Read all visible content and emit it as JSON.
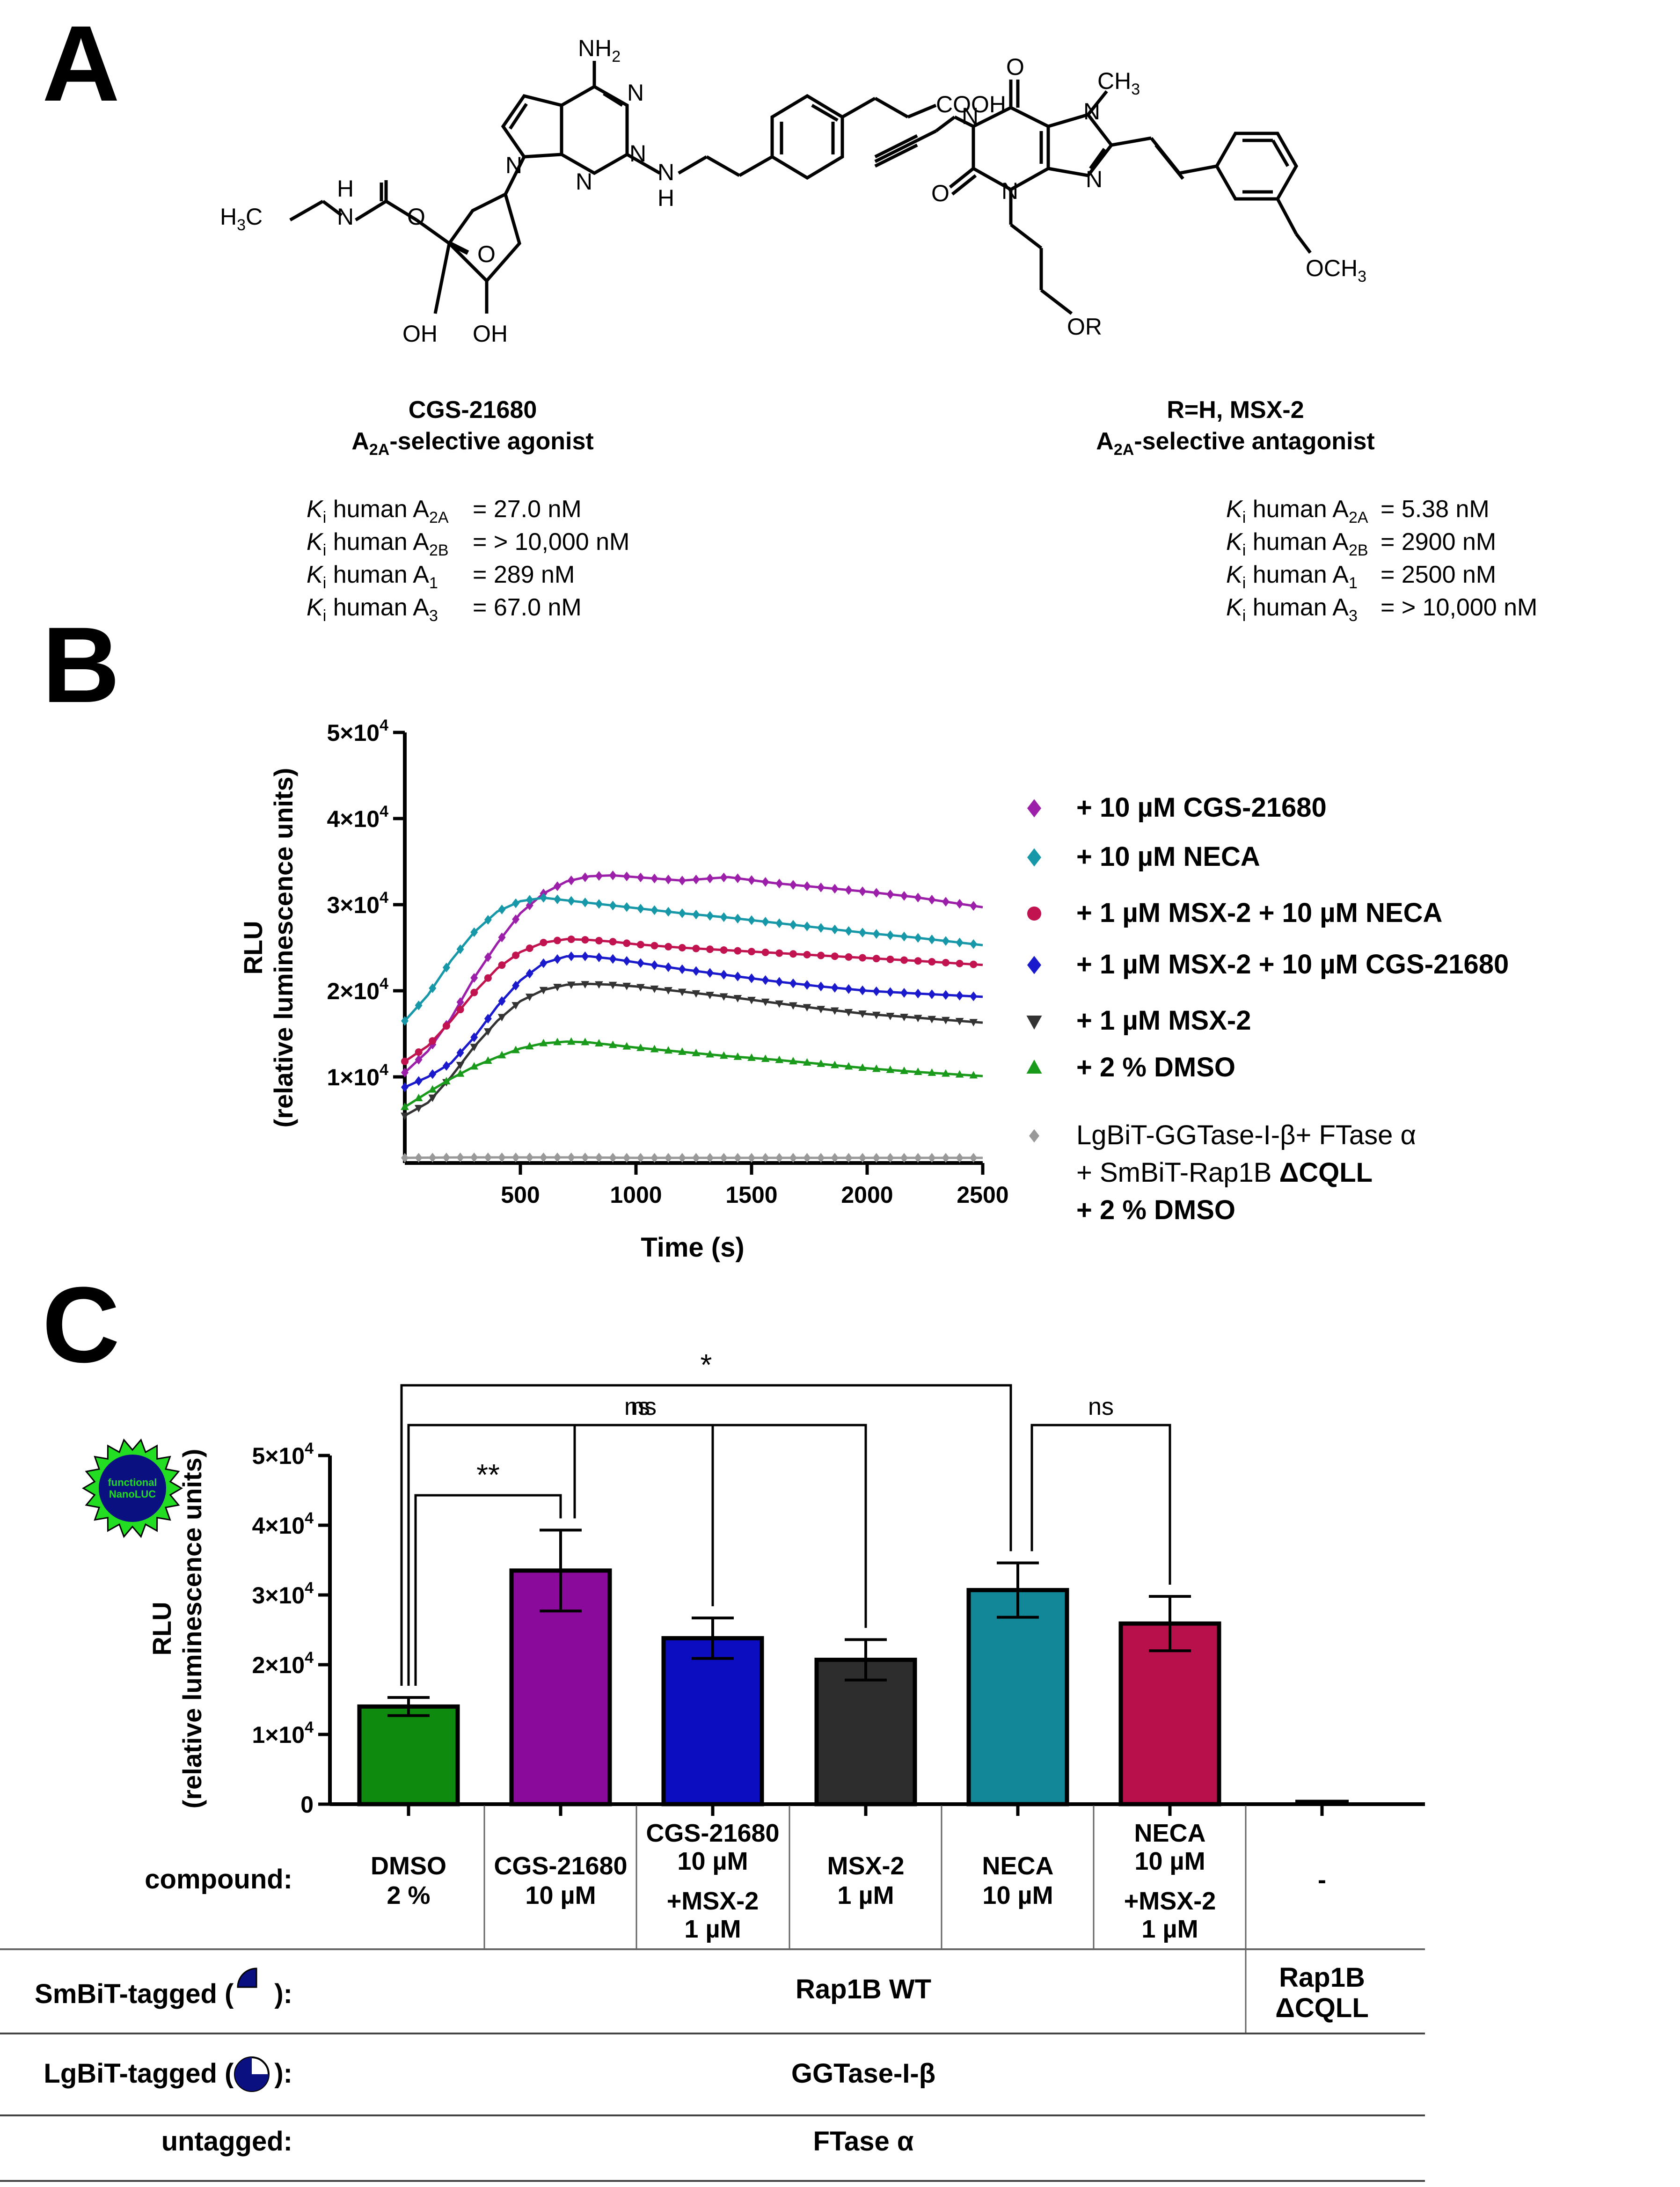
{
  "panels": {
    "a": "A",
    "b": "B",
    "c": "C"
  },
  "panel_a": {
    "cgs": {
      "atoms": {
        "nh2": "NH",
        "nh2_sub": "2",
        "n1": "N",
        "n2": "N",
        "n3": "N",
        "n4": "N",
        "nh": "N",
        "nh_h": "H",
        "cooh": "COOH",
        "h3c": "H",
        "h3c_sub": "3",
        "h3c_c": "C",
        "amide_h": "H",
        "amide_n": "N",
        "o_carbonyl": "O",
        "o_ring": "O",
        "oh1": "OH",
        "oh2": "OH"
      },
      "name": "CGS-21680",
      "role_prefix": "A",
      "role_sub": "2A",
      "role_suffix": "-selective agonist",
      "ki": [
        {
          "k": "K",
          "ksub": "i",
          "text": " human A",
          "sub": "2A",
          "value": "= 27.0 nM"
        },
        {
          "k": "K",
          "ksub": "i",
          "text": " human A",
          "sub": "2B",
          "value": "= > 10,000 nM"
        },
        {
          "k": "K",
          "ksub": "i",
          "text": " human A",
          "sub": "1",
          "value": "= 289 nM"
        },
        {
          "k": "K",
          "ksub": "i",
          "text": " human A",
          "sub": "3",
          "value": "= 67.0 nM"
        }
      ]
    },
    "msx": {
      "atoms": {
        "o_top": "O",
        "ch3": "CH",
        "ch3_sub": "3",
        "n1": "N",
        "n7": "N",
        "n9": "N",
        "n3": "N",
        "o_bottom": "O",
        "och3": "OCH",
        "och3_sub": "3",
        "or": "OR"
      },
      "name": "R=H, MSX-2",
      "role_prefix": "A",
      "role_sub": "2A",
      "role_suffix": "-selective antagonist",
      "ki": [
        {
          "k": "K",
          "ksub": "i",
          "text": " human A",
          "sub": "2A",
          "value": "= 5.38 nM"
        },
        {
          "k": "K",
          "ksub": "i",
          "text": " human A",
          "sub": "2B",
          "value": "= 2900 nM"
        },
        {
          "k": "K",
          "ksub": "i",
          "text": " human A",
          "sub": "1",
          "value": "= 2500 nM"
        },
        {
          "k": "K",
          "ksub": "i",
          "text": " human A",
          "sub": "3",
          "value": "= > 10,000 nM"
        }
      ]
    }
  },
  "chart_data": [
    {
      "type": "line",
      "panel": "B",
      "ylabel": "RLU",
      "ylabel2": "(relative luminescence units)",
      "xlabel": "Time (s)",
      "xlim": [
        0,
        2500
      ],
      "ylim": [
        0,
        50000
      ],
      "x_ticks": [
        500,
        1000,
        1500,
        2000,
        2500
      ],
      "y_ticks": [
        {
          "value": 10000,
          "m": "1",
          "e": "4"
        },
        {
          "value": 20000,
          "m": "2",
          "e": "4"
        },
        {
          "value": 30000,
          "m": "3",
          "e": "4"
        },
        {
          "value": 40000,
          "m": "4",
          "e": "4"
        },
        {
          "value": 50000,
          "m": "5",
          "e": "4"
        }
      ],
      "tick_mult": "×10",
      "legend_position": "right",
      "series": [
        {
          "name": "+ 10 µM CGS-21680",
          "color": "#9b1fa8",
          "marker": "diamond",
          "x": [
            0,
            100,
            200,
            300,
            400,
            500,
            600,
            700,
            800,
            900,
            1000,
            1200,
            1400,
            1600,
            1800,
            2000,
            2200,
            2500
          ],
          "y": [
            10500,
            13000,
            16800,
            21500,
            25500,
            29000,
            31300,
            32700,
            33300,
            33400,
            33200,
            32800,
            33200,
            32500,
            32000,
            31500,
            30900,
            29700
          ]
        },
        {
          "name": "+ 10 µM NECA",
          "color": "#1798a8",
          "marker": "diamond",
          "x": [
            0,
            100,
            200,
            300,
            400,
            500,
            600,
            700,
            800,
            900,
            1000,
            1200,
            1400,
            1600,
            1800,
            2000,
            2200,
            2500
          ],
          "y": [
            16500,
            19500,
            23500,
            26800,
            29200,
            30400,
            30800,
            30500,
            30200,
            29900,
            29600,
            29000,
            28500,
            27900,
            27300,
            26700,
            26200,
            25300
          ]
        },
        {
          "name": "+ 1 µM MSX-2 + 10 µM NECA",
          "color": "#c0134f",
          "marker": "circle",
          "x": [
            0,
            100,
            200,
            300,
            400,
            500,
            600,
            700,
            800,
            900,
            1000,
            1200,
            1400,
            1600,
            1800,
            2000,
            2200,
            2500
          ],
          "y": [
            11800,
            13600,
            16500,
            19800,
            22600,
            24500,
            25600,
            26000,
            25900,
            25700,
            25400,
            25000,
            24700,
            24400,
            24100,
            23800,
            23500,
            23000
          ]
        },
        {
          "name": "+ 1 µM MSX-2 + 10 µM CGS-21680",
          "color": "#1a1acc",
          "marker": "diamond",
          "x": [
            0,
            100,
            200,
            300,
            400,
            500,
            600,
            700,
            800,
            900,
            1000,
            1200,
            1400,
            1600,
            1800,
            2000,
            2200,
            2500
          ],
          "y": [
            8800,
            10000,
            11600,
            14600,
            18200,
            21200,
            23200,
            24000,
            24000,
            23700,
            23300,
            22500,
            21800,
            21100,
            20500,
            20000,
            19700,
            19300
          ]
        },
        {
          "name": "+ 1 µM MSX-2",
          "color": "#333333",
          "marker": "triangle-down",
          "x": [
            0,
            100,
            200,
            300,
            400,
            500,
            600,
            700,
            800,
            900,
            1000,
            1200,
            1400,
            1600,
            1800,
            2000,
            2200,
            2500
          ],
          "y": [
            5500,
            7000,
            10000,
            13500,
            16500,
            18800,
            20100,
            20700,
            20800,
            20700,
            20500,
            19900,
            19300,
            18600,
            17900,
            17300,
            16900,
            16300
          ]
        },
        {
          "name": "+ 2 % DMSO",
          "color": "#1a9a1a",
          "marker": "triangle-up",
          "x": [
            0,
            100,
            200,
            300,
            400,
            500,
            600,
            700,
            800,
            900,
            1000,
            1200,
            1400,
            1600,
            1800,
            2000,
            2200,
            2500
          ],
          "y": [
            6500,
            8200,
            9800,
            11200,
            12300,
            13300,
            13900,
            14100,
            14000,
            13700,
            13400,
            12900,
            12400,
            12000,
            11500,
            11000,
            10600,
            10100
          ]
        },
        {
          "name": "LgBiT-GGTase-I-β+ FTase α",
          "color": "#999999",
          "marker": "diamond",
          "x": [
            0,
            250,
            500,
            750,
            1000,
            1250,
            1500,
            1750,
            2000,
            2250,
            2500
          ],
          "y": [
            600,
            650,
            650,
            650,
            600,
            600,
            600,
            600,
            600,
            600,
            600
          ]
        }
      ],
      "legend_extra": [
        "+ SmBiT-Rap1B ",
        "ΔCQLL",
        "+ 2 % DMSO"
      ]
    },
    {
      "type": "bar",
      "panel": "C",
      "ylabel": "RLU",
      "ylabel2": "(relative luminescence units)",
      "ylim": [
        0,
        50000
      ],
      "y_ticks": [
        {
          "value": 0,
          "m": "0",
          "e": ""
        },
        {
          "value": 10000,
          "m": "1",
          "e": "4"
        },
        {
          "value": 20000,
          "m": "2",
          "e": "4"
        },
        {
          "value": 30000,
          "m": "3",
          "e": "4"
        },
        {
          "value": 40000,
          "m": "4",
          "e": "4"
        },
        {
          "value": 50000,
          "m": "5",
          "e": "4"
        }
      ],
      "tick_mult": "×10",
      "categories": [
        "DMSO 2 %",
        "CGS-21680 10 µM",
        "CGS-21680 10 µM +MSX-2 1 µM",
        "MSX-2 1 µM",
        "NECA 10 µM",
        "NECA 10 µM +MSX-2 1 µM",
        "-"
      ],
      "values": [
        14000,
        33500,
        23800,
        20700,
        30700,
        25900,
        500
      ],
      "errors": [
        1300,
        5800,
        2900,
        2900,
        3900,
        3900,
        0
      ],
      "colors": [
        "#0e8a0e",
        "#8a0a9c",
        "#0c0cc0",
        "#2d2d2d",
        "#128798",
        "#b8104a",
        "#000000"
      ],
      "significance": [
        {
          "from": 0,
          "to": 4,
          "label": "*"
        },
        {
          "from": 0,
          "to": 3,
          "label": "ns"
        },
        {
          "from": 0,
          "to": 1,
          "label": "**"
        },
        {
          "from": 1,
          "to": 2,
          "label": "ns"
        },
        {
          "from": 4,
          "to": 5,
          "label": "ns"
        }
      ],
      "badge": {
        "line1": "functional",
        "line2": "NanoLUC"
      }
    }
  ],
  "table": {
    "compound_label": "compound:",
    "compounds": [
      [
        "DMSO",
        "2 %"
      ],
      [
        "CGS-21680",
        "10 µM"
      ],
      [
        "CGS-21680",
        "10 µM",
        "+MSX-2",
        "1 µM"
      ],
      [
        "MSX-2",
        "1 µM"
      ],
      [
        "NECA",
        "10 µM"
      ],
      [
        "NECA",
        "10 µM",
        "+MSX-2",
        "1 µM"
      ],
      [
        "-"
      ]
    ],
    "smbit_label": "SmBiT-tagged (",
    "smbit_close": "):",
    "smbit_value": "Rap1B WT",
    "smbit_value2a": "Rap1B",
    "smbit_value2b": "ΔCQLL",
    "lgbit_label": "LgBiT-tagged (",
    "lgbit_close": "):",
    "lgbit_value": "GGTase-I-β",
    "untagged_label": "untagged:",
    "untagged_value": "FTase α"
  }
}
